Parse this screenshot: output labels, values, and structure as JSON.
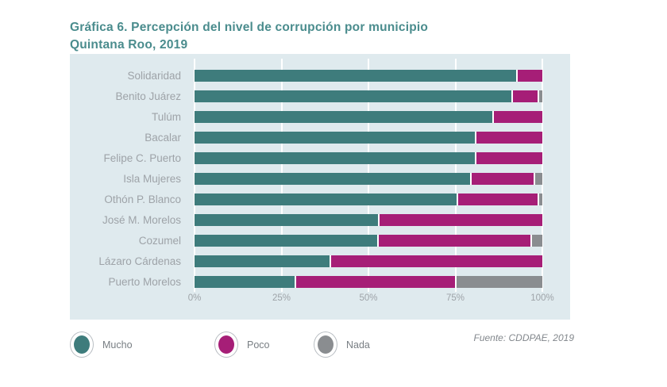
{
  "title": "Gráfica 6. Percepción del nivel de corrupción por municipio",
  "subtitle": "Quintana Roo, 2019",
  "source": "Fuente: CDDPAE, 2019",
  "colors": {
    "title": "#4a8c8d",
    "panel_background": "#dfeaee",
    "mucho": "#3e7c7c",
    "poco": "#a61e77",
    "nada": "#8a8d90",
    "gridline": "#ffffff",
    "label_text": "#9ea3a8"
  },
  "legend": [
    {
      "label": "Mucho",
      "color": "#3e7c7c"
    },
    {
      "label": "Poco",
      "color": "#a61e77"
    },
    {
      "label": "Nada",
      "color": "#8a8d90"
    }
  ],
  "chart_data": {
    "type": "bar",
    "orientation": "horizontal",
    "stacked": true,
    "unit": "percent",
    "title": "Gráfica 6. Percepción del nivel de corrupción por municipio",
    "subtitle": "Quintana Roo, 2019",
    "xlabel": "",
    "ylabel": "",
    "xlim": [
      0,
      100
    ],
    "xticks": [
      "0%",
      "25%",
      "50%",
      "75%",
      "100%"
    ],
    "xtick_values": [
      0,
      25,
      50,
      75,
      100
    ],
    "grid": true,
    "legend_position": "bottom",
    "categories": [
      "Solidaridad",
      "Benito Juárez",
      "Tulúm",
      "Bacalar",
      "Felipe C. Puerto",
      "Isla Mujeres",
      "Othón P. Blanco",
      "José M. Morelos",
      "Cozumel",
      "Lázaro Cárdenas",
      "Puerto Morelos"
    ],
    "series": [
      {
        "name": "Mucho",
        "color": "#3e7c7c",
        "values": [
          93,
          92,
          86,
          81,
          81,
          80,
          76,
          53,
          53,
          39,
          29
        ]
      },
      {
        "name": "Poco",
        "color": "#a61e77",
        "values": [
          7,
          7,
          14,
          19,
          19,
          18,
          23,
          47,
          44,
          61,
          46
        ]
      },
      {
        "name": "Nada",
        "color": "#8a8d90",
        "values": [
          0,
          1,
          0,
          0,
          0,
          2,
          1,
          0,
          3,
          0,
          25
        ]
      }
    ]
  }
}
